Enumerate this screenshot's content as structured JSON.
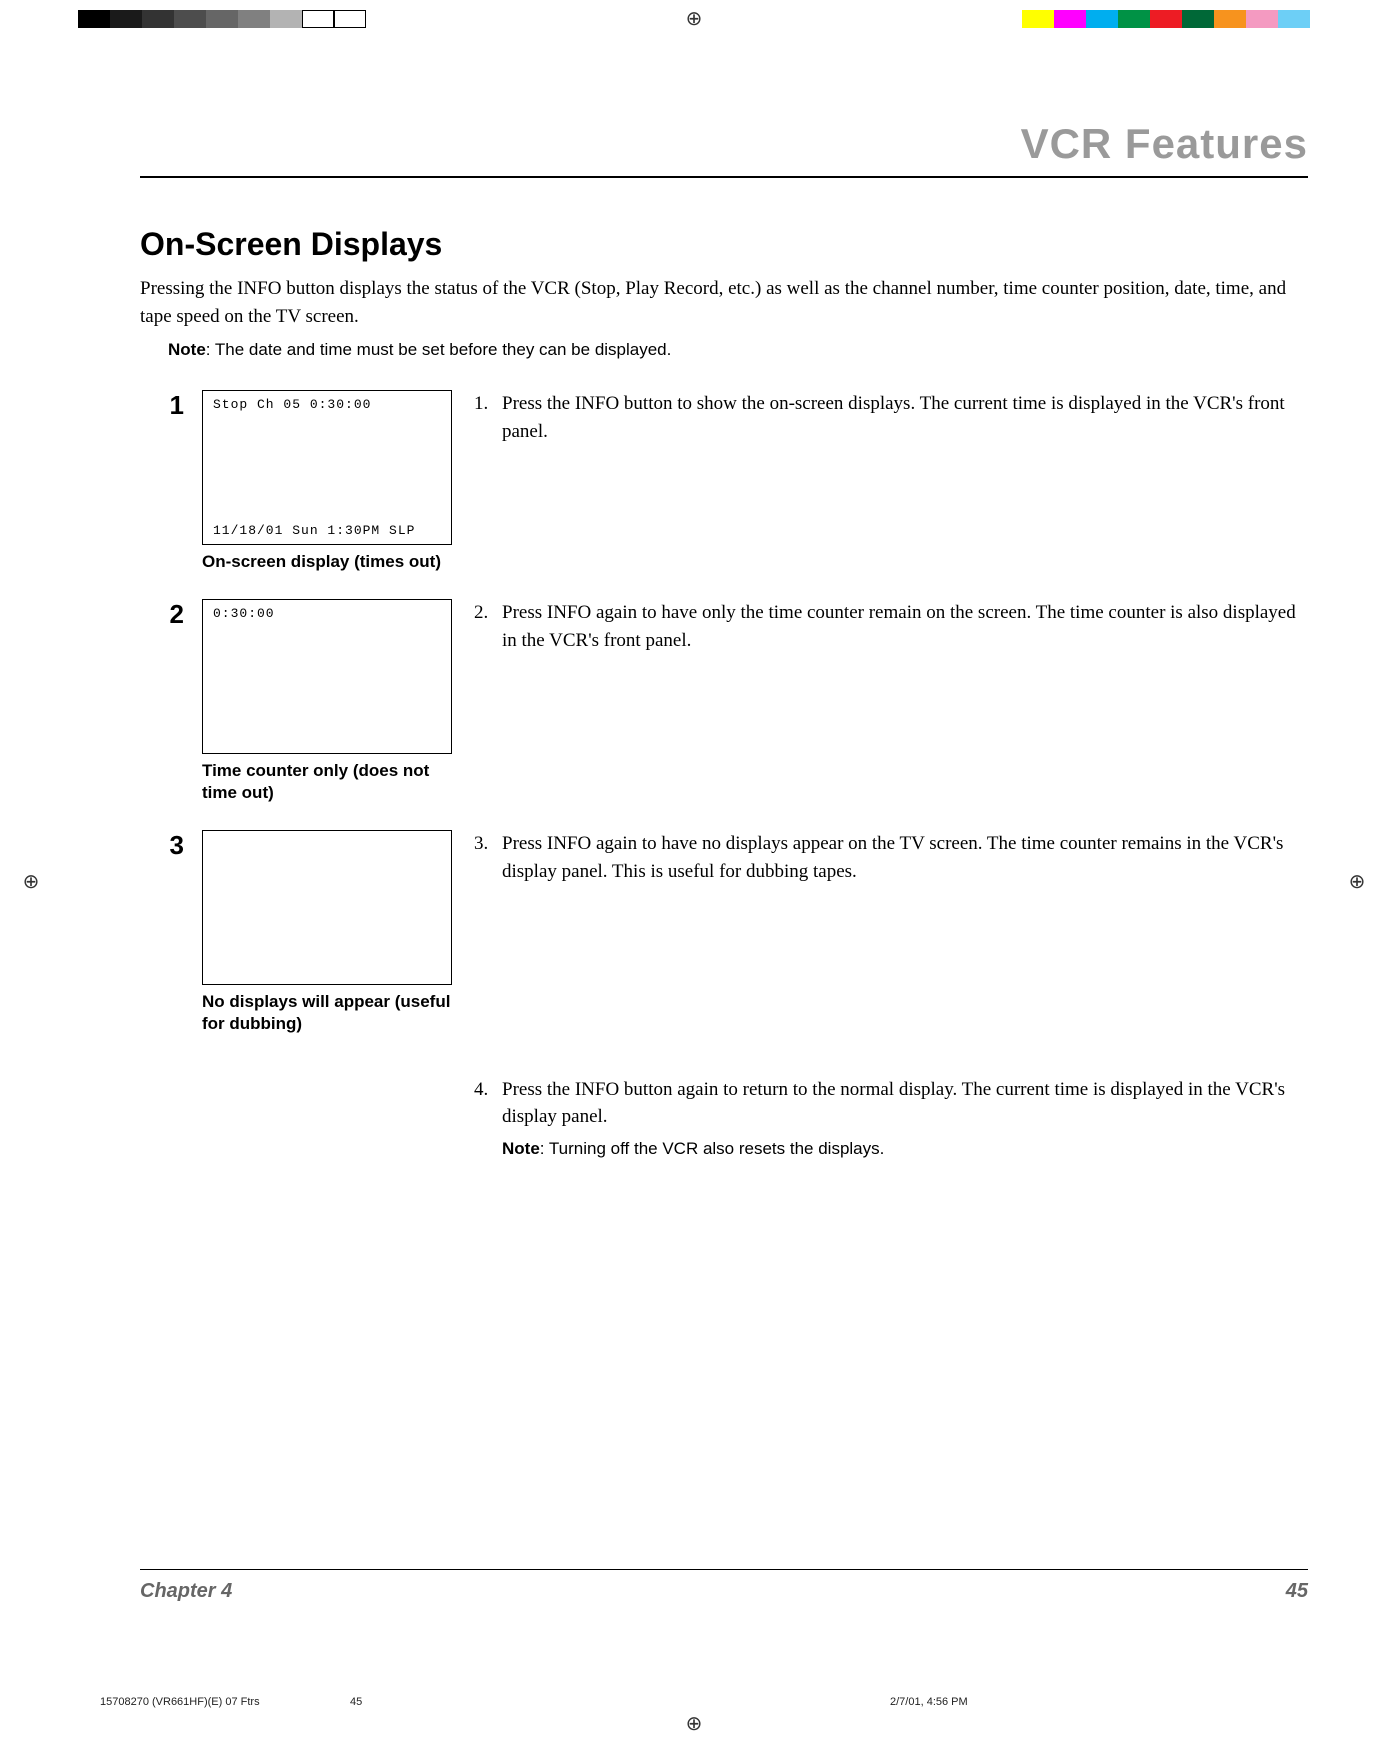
{
  "colorbar_left": [
    "#000000",
    "#1a1a1a",
    "#333333",
    "#4d4d4d",
    "#666666",
    "#808080",
    "#b3b3b3",
    "#ffffff",
    "#ffffff"
  ],
  "colorbar_right": [
    "#ffff00",
    "#ff00ff",
    "#00aeef",
    "#009245",
    "#ed1c24",
    "#006837",
    "#f7931e",
    "#f49ac1",
    "#6dcff6"
  ],
  "header": {
    "title": "VCR Features"
  },
  "section": {
    "title": "On-Screen Displays"
  },
  "intro": "Pressing the INFO button displays the status of the VCR (Stop, Play Record, etc.) as well as the channel number, time counter position, date, time, and tape speed on the TV screen.",
  "note_global_label": "Note",
  "note_global_text": ": The date and time must be set before they can be displayed.",
  "steps": [
    {
      "num": "1",
      "screen_top": "Stop   Ch 05    0:30:00",
      "screen_bottom": "11/18/01 Sun  1:30PM SLP",
      "caption": "On-screen display (times out)",
      "desc_num": "1.",
      "desc": "Press the INFO button to show the on-screen displays. The current time is displayed in the VCR's front panel."
    },
    {
      "num": "2",
      "screen_top": "                0:30:00",
      "screen_bottom": "",
      "caption": "Time counter only (does not time out)",
      "desc_num": "2.",
      "desc": "Press INFO again to have only the time counter remain on the screen. The time counter is also displayed in the VCR's front panel."
    },
    {
      "num": "3",
      "screen_top": "",
      "screen_bottom": "",
      "caption": "No displays will appear (useful for dubbing)",
      "desc_num": "3.",
      "desc": "Press INFO again to have no displays appear on the TV screen. The time counter remains in the VCR's display panel. This is useful for dubbing tapes."
    }
  ],
  "step4": {
    "desc_num": "4.",
    "desc": "Press the INFO button again to return to the normal display. The current time is displayed in the VCR's display panel.",
    "note_label": "Note",
    "note_text": ": Turning off the VCR also resets the displays."
  },
  "footer": {
    "chapter": "Chapter 4",
    "page": "45"
  },
  "print": {
    "file": "15708270 (VR661HF)(E) 07 Ftrs",
    "page": "45",
    "datetime": "2/7/01, 4:56 PM"
  }
}
